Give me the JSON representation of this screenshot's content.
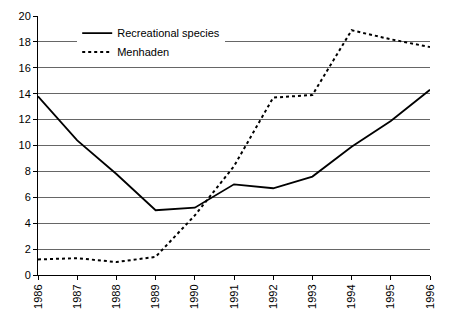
{
  "chart_data": {
    "type": "line",
    "x": [
      1986,
      1987,
      1988,
      1989,
      1990,
      1991,
      1992,
      1993,
      1994,
      1995,
      1996
    ],
    "series": [
      {
        "name": "Recreational species",
        "color": "#000000",
        "line_style": "solid",
        "values": [
          13.8,
          10.4,
          7.8,
          5.0,
          5.2,
          7.0,
          6.7,
          7.6,
          9.9,
          11.9,
          14.3
        ]
      },
      {
        "name": "Menhaden",
        "color": "#000000",
        "line_style": "dot",
        "values": [
          1.2,
          1.3,
          1.0,
          1.4,
          4.6,
          8.4,
          13.7,
          13.9,
          18.9,
          18.2,
          17.6
        ]
      }
    ],
    "xlim": [
      1986,
      1996
    ],
    "xticks": [
      1986,
      1987,
      1988,
      1989,
      1990,
      1991,
      1992,
      1993,
      1994,
      1995,
      1996
    ],
    "ylim": [
      0,
      20
    ],
    "yticks": [
      0,
      2,
      4,
      6,
      8,
      10,
      12,
      14,
      16,
      18,
      20
    ],
    "grid": true,
    "legend": "top-left"
  }
}
